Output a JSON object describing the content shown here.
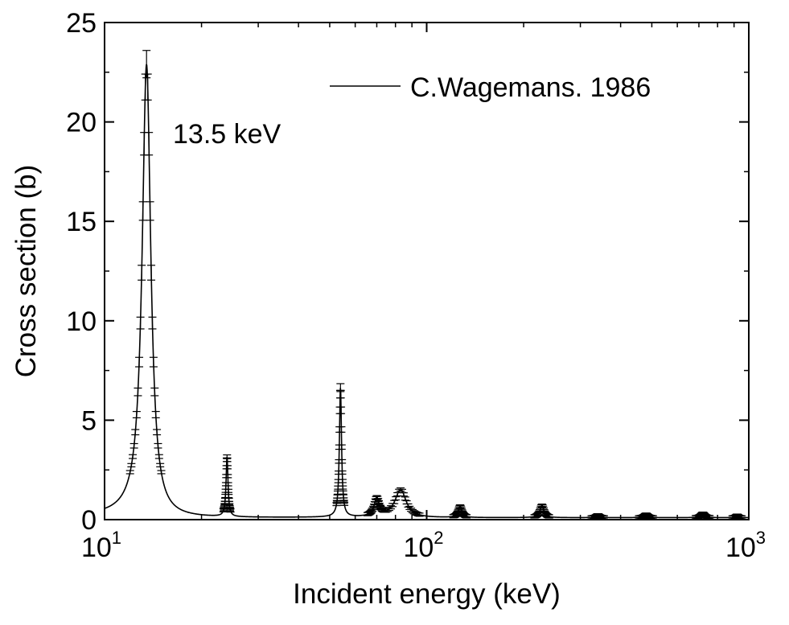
{
  "chart_data": {
    "type": "line",
    "title": "",
    "xlabel": "Incident energy (keV)",
    "ylabel": "Cross section (b)",
    "xscale": "log",
    "xlim": [
      10,
      1000
    ],
    "ylim": [
      0,
      25
    ],
    "grid": false,
    "legend_position": "top-right",
    "x_ticks": [
      {
        "value": 10,
        "base": "10",
        "exp": "1"
      },
      {
        "value": 100,
        "base": "10",
        "exp": "2"
      },
      {
        "value": 1000,
        "base": "10",
        "exp": "3"
      }
    ],
    "y_ticks": [
      0,
      5,
      10,
      15,
      20,
      25
    ],
    "annotations": [
      {
        "text": "13.5 keV",
        "x": 13.5,
        "y": 19.5
      }
    ],
    "series": [
      {
        "name": "C.Wagemans. 1986",
        "color": "#000000",
        "baseline": 0.1,
        "resonances": [
          {
            "e0": 13.5,
            "peak": 22.8,
            "width": 0.5
          },
          {
            "e0": 24.0,
            "peak": 3.0,
            "width": 0.2
          },
          {
            "e0": 54.0,
            "peak": 6.5,
            "width": 0.5
          },
          {
            "e0": 70.0,
            "peak": 0.9,
            "width": 1.5
          },
          {
            "e0": 83.0,
            "peak": 1.4,
            "width": 4.0
          },
          {
            "e0": 127.0,
            "peak": 0.55,
            "width": 2.0
          },
          {
            "e0": 228.0,
            "peak": 0.6,
            "width": 4.0
          },
          {
            "e0": 340.0,
            "peak": 0.12,
            "width": 5.0
          },
          {
            "e0": 480.0,
            "peak": 0.15,
            "width": 8.0
          },
          {
            "e0": 720.0,
            "peak": 0.2,
            "width": 12.0
          },
          {
            "e0": 920.0,
            "peak": 0.1,
            "width": 10.0
          }
        ]
      }
    ]
  }
}
